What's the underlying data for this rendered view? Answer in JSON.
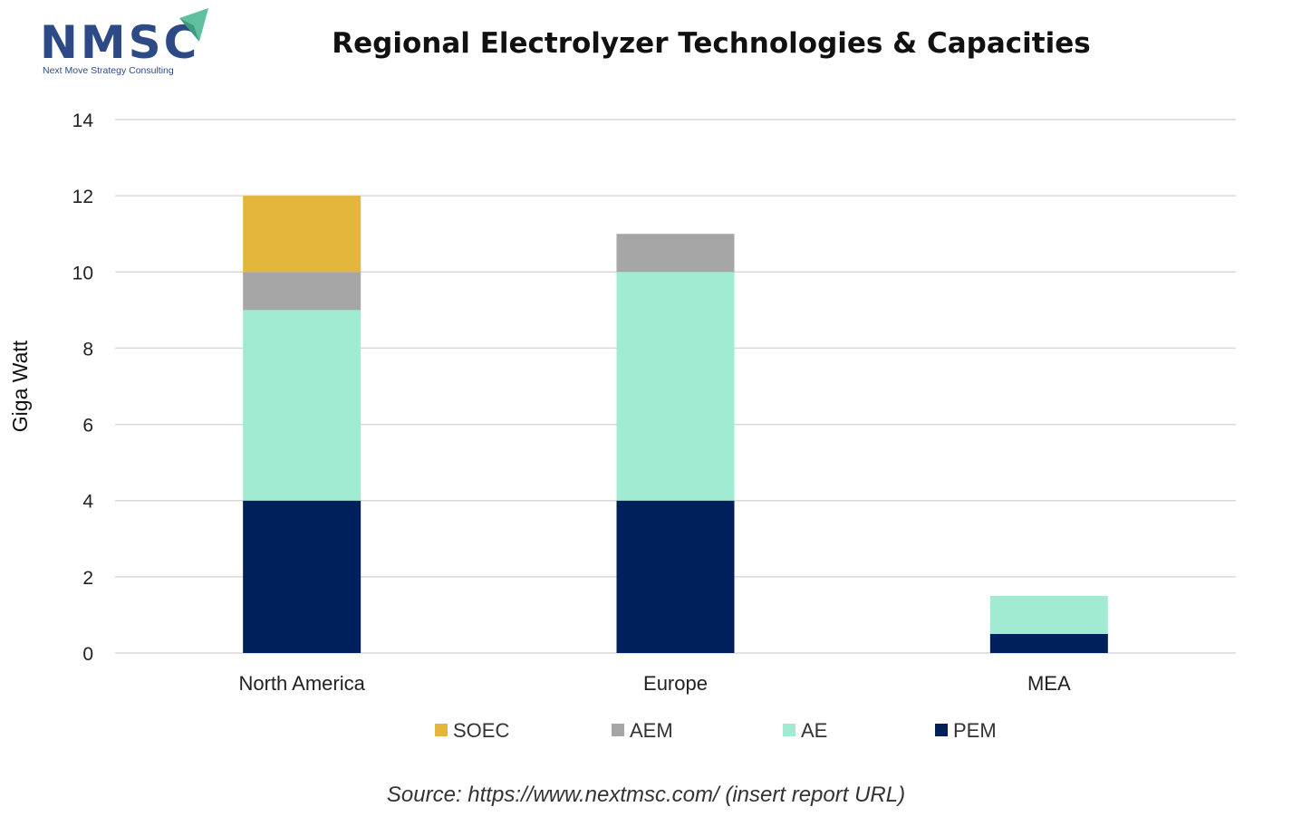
{
  "logo": {
    "text": "NMSC",
    "tagline": "Next Move Strategy Consulting",
    "accent_color": "#5fbf9f",
    "brand_color": "#2e4a86"
  },
  "chart_data": {
    "type": "bar",
    "stacked": true,
    "title": "Regional Electrolyzer Technologies & Capacities",
    "xlabel": "",
    "ylabel": "Giga Watt",
    "categories": [
      "North America",
      "Europe",
      "MEA"
    ],
    "series": [
      {
        "name": "PEM",
        "color": "#00205b",
        "values": [
          4,
          4,
          0.5
        ]
      },
      {
        "name": "AE",
        "color": "#a0ebd1",
        "values": [
          5,
          6,
          1
        ]
      },
      {
        "name": "AEM",
        "color": "#a6a6a6",
        "values": [
          1,
          1,
          0
        ]
      },
      {
        "name": "SOEC",
        "color": "#e3b73b",
        "values": [
          2,
          0,
          0
        ]
      }
    ],
    "legend_order": [
      "SOEC",
      "AEM",
      "AE",
      "PEM"
    ],
    "ylim": [
      0,
      14
    ],
    "yticks": [
      0,
      2,
      4,
      6,
      8,
      10,
      12,
      14
    ],
    "grid": true,
    "legend_position": "bottom"
  },
  "source": "Source: https://www.nextmsc.com/ (insert report URL)"
}
